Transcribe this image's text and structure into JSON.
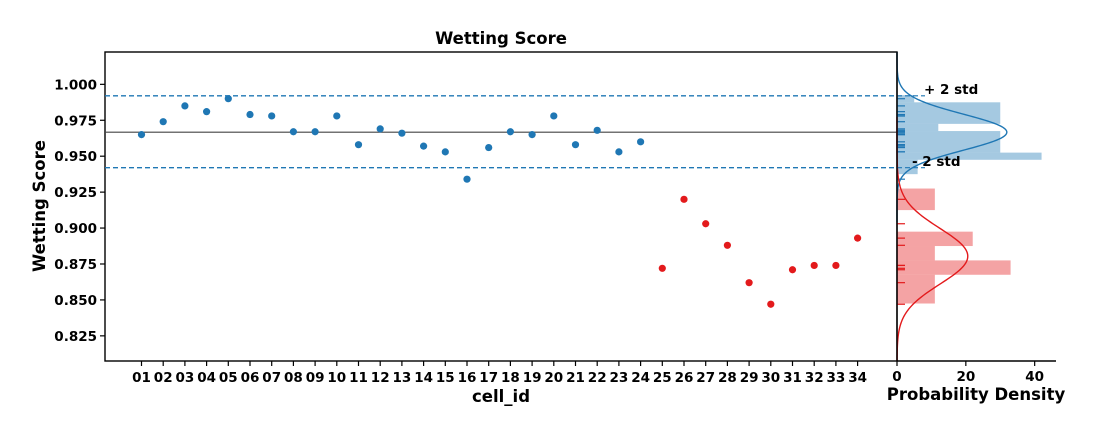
{
  "chart_data": [
    {
      "type": "scatter",
      "title": "Wetting Score",
      "xlabel": "cell_id",
      "ylabel": "Wetting Score",
      "ylim": [
        0.8075,
        1.0225
      ],
      "yticks": [
        "0.825",
        "0.850",
        "0.875",
        "0.900",
        "0.925",
        "0.950",
        "0.975",
        "1.000"
      ],
      "ytick_values": [
        0.825,
        0.85,
        0.875,
        0.9,
        0.925,
        0.95,
        0.975,
        1.0
      ],
      "categories": [
        "01",
        "02",
        "03",
        "04",
        "05",
        "06",
        "07",
        "08",
        "09",
        "10",
        "11",
        "12",
        "13",
        "14",
        "15",
        "16",
        "17",
        "18",
        "19",
        "20",
        "21",
        "22",
        "23",
        "24",
        "25",
        "26",
        "27",
        "28",
        "29",
        "30",
        "31",
        "32",
        "33",
        "34"
      ],
      "series": [
        {
          "color": "#1f77b4",
          "x_start": 1,
          "values": [
            0.965,
            0.974,
            0.985,
            0.981,
            0.99,
            0.979,
            0.978,
            0.967,
            0.967,
            0.978,
            0.958,
            0.969,
            0.966,
            0.957,
            0.953,
            0.934,
            0.956,
            0.967,
            0.965,
            0.978,
            0.958,
            0.968,
            0.953,
            0.96
          ]
        },
        {
          "color": "#e31a1c",
          "x_start": 25,
          "values": [
            0.872,
            0.92,
            0.903,
            0.888,
            0.862,
            0.847,
            0.871,
            0.874,
            0.874,
            0.893
          ]
        }
      ],
      "reference_lines": [
        {
          "value": 0.9667,
          "style": "solid",
          "color": "#444444"
        },
        {
          "value": 0.992,
          "style": "dashed",
          "color": "#1f77b4"
        },
        {
          "value": 0.942,
          "style": "dashed",
          "color": "#1f77b4"
        }
      ],
      "grid": false
    },
    {
      "type": "histogram",
      "xlabel": "Probability Density",
      "xlim": [
        0,
        43
      ],
      "xticks": [
        "0",
        "20",
        "40"
      ],
      "xtick_values": [
        0,
        20,
        40
      ],
      "annotations": [
        "+ 2 std",
        "- 2 std"
      ],
      "annotation_y": [
        0.992,
        0.942
      ],
      "blue_bins": [
        {
          "y0": 0.9875,
          "y1": 0.9925,
          "density": 5
        },
        {
          "y0": 0.9725,
          "y1": 0.9875,
          "density": 30
        },
        {
          "y0": 0.9675,
          "y1": 0.9725,
          "density": 12
        },
        {
          "y0": 0.9525,
          "y1": 0.9675,
          "density": 30
        },
        {
          "y0": 0.9475,
          "y1": 0.9525,
          "density": 42
        },
        {
          "y0": 0.9375,
          "y1": 0.9475,
          "density": 6
        }
      ],
      "red_bins": [
        {
          "y0": 0.9125,
          "y1": 0.9275,
          "density": 11
        },
        {
          "y0": 0.8875,
          "y1": 0.8975,
          "density": 22
        },
        {
          "y0": 0.8775,
          "y1": 0.8875,
          "density": 11
        },
        {
          "y0": 0.8675,
          "y1": 0.8775,
          "density": 33
        },
        {
          "y0": 0.8475,
          "y1": 0.8675,
          "density": 11
        }
      ],
      "blue_fit": {
        "mean": 0.9667,
        "std": 0.0125,
        "color": "#1f77b4"
      },
      "red_fit": {
        "mean": 0.8804,
        "std": 0.0194,
        "color": "#e31a1c"
      }
    }
  ]
}
